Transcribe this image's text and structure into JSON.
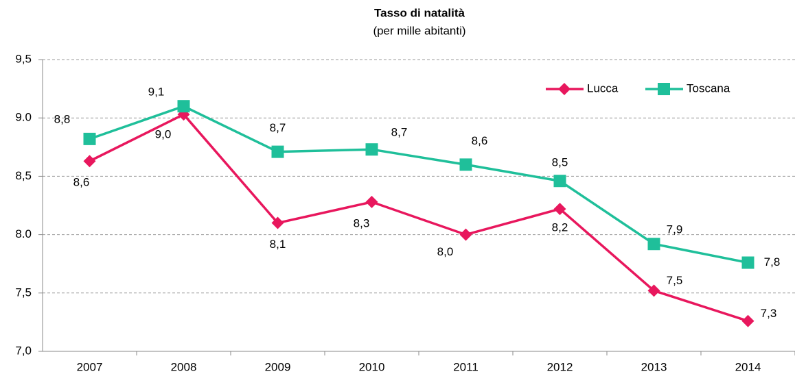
{
  "chart_data": {
    "type": "line",
    "title": "Tasso di natalità",
    "subtitle": "(per mille abitanti)",
    "categories": [
      "2007",
      "2008",
      "2009",
      "2010",
      "2011",
      "2012",
      "2013",
      "2014"
    ],
    "series": [
      {
        "name": "Lucca",
        "color": "#e8175d",
        "marker": "diamond",
        "values": [
          8.63,
          9.03,
          8.1,
          8.28,
          8.0,
          8.22,
          7.52,
          7.26
        ],
        "value_labels": [
          "8,6",
          "9,0",
          "8,1",
          "8,3",
          "8,0",
          "8,2",
          "7,5",
          "7,3"
        ]
      },
      {
        "name": "Toscana",
        "color": "#1fbf9a",
        "marker": "square",
        "values": [
          8.82,
          9.1,
          8.71,
          8.73,
          8.6,
          8.46,
          7.92,
          7.76
        ],
        "value_labels": [
          "8,8",
          "9,1",
          "8,7",
          "8,7",
          "8,6",
          "8,5",
          "7,9",
          "7,8"
        ]
      }
    ],
    "ylim": [
      7.0,
      9.5
    ],
    "yticks": [
      {
        "value": 7.0,
        "label": "7,0"
      },
      {
        "value": 7.5,
        "label": "7,5"
      },
      {
        "value": 8.0,
        "label": "8.0"
      },
      {
        "value": 8.5,
        "label": "8,5"
      },
      {
        "value": 9.0,
        "label": "9.0"
      },
      {
        "value": 9.5,
        "label": "9,5"
      }
    ],
    "grid": true,
    "legend": "upper right"
  }
}
